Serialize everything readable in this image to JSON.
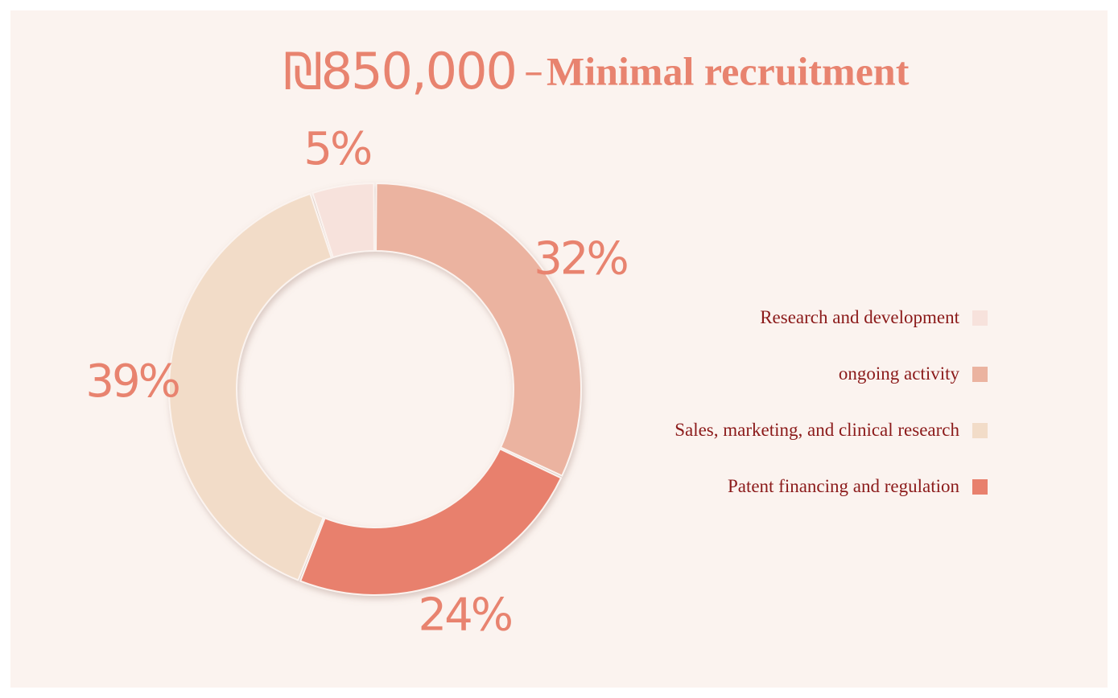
{
  "title": {
    "amount": "₪850,000",
    "separator": "–",
    "label": "Minimal recruitment"
  },
  "chart_data": {
    "type": "pie",
    "donut": true,
    "slices": [
      {
        "label": "ongoing activity",
        "value": 32,
        "display": "32%",
        "color": "#ebb3a0"
      },
      {
        "label": "Patent financing and regulation",
        "value": 24,
        "display": "24%",
        "color": "#e8806d"
      },
      {
        "label": "Sales, marketing, and clinical research",
        "value": 39,
        "display": "39%",
        "color": "#f2dcc8"
      },
      {
        "label": "Research and development",
        "value": 5,
        "display": "5%",
        "color": "#f7e2dc"
      }
    ],
    "legend": {
      "placement": "right",
      "items": [
        {
          "label": "Research and development",
          "color": "#f7e2dc"
        },
        {
          "label": "ongoing activity",
          "color": "#ebb3a0"
        },
        {
          "label": "Sales, marketing, and clinical research",
          "color": "#f2dcc8"
        },
        {
          "label": "Patent financing and regulation",
          "color": "#e8806d"
        }
      ]
    }
  }
}
